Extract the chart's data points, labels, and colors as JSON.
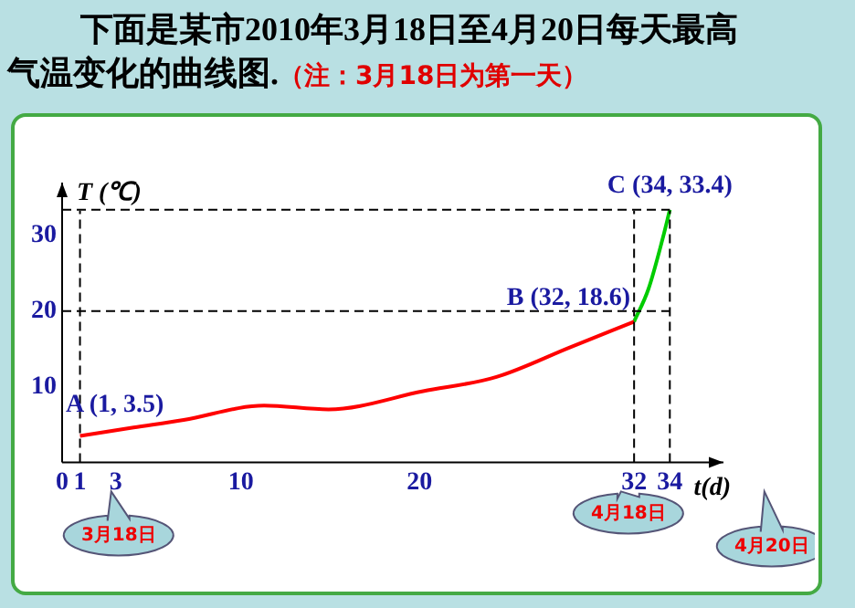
{
  "chart_data": {
    "type": "line",
    "title": "下面是某市2010年3月18日至4月20日每天最高气温变化的曲线图.",
    "subtitle": "（注：3月18日为第一天）",
    "xlabel": "t(d)",
    "ylabel": "T (℃)",
    "series": [
      {
        "color": "#ff0000",
        "x": [
          1,
          4,
          6.8,
          11.3,
          14.9,
          20.2,
          24.3,
          28.4,
          32
        ],
        "values": [
          3.5,
          4.6,
          5.6,
          7.5,
          7,
          9.4,
          11.3,
          15.2,
          18.6
        ]
      },
      {
        "color": "#00cc00",
        "x": [
          32,
          32.8,
          33.6,
          34
        ],
        "values": [
          18.6,
          22.9,
          29.6,
          33.4
        ]
      }
    ],
    "xlim": [
      0,
      37
    ],
    "xticks": [
      0,
      1,
      3,
      10,
      20,
      32,
      34
    ],
    "ylim": [
      0,
      37
    ],
    "yticks": [
      10,
      20,
      30
    ],
    "ref_lines": [
      {
        "axis": "y",
        "value": 20,
        "line_style": "dashed"
      },
      {
        "axis": "y",
        "value": 33.4,
        "line_style": "dashed"
      },
      {
        "axis": "x",
        "value": 1,
        "line_style": "dashed"
      },
      {
        "axis": "x",
        "value": 32,
        "line_style": "dashed"
      },
      {
        "axis": "x",
        "value": 34,
        "line_style": "dashed"
      }
    ],
    "annotations": [
      {
        "text": "A (1, 3.5)",
        "x": 1,
        "y": 3.5
      },
      {
        "text": "B (32, 18.6)",
        "x": 32,
        "y": 18.6
      },
      {
        "text": "C (34, 33.4)",
        "x": 34,
        "y": 33.4
      },
      "3月18日",
      "4月18日",
      "4月20日"
    ],
    "marker": "none",
    "line_style": "solid",
    "grid": false,
    "legend": false
  }
}
